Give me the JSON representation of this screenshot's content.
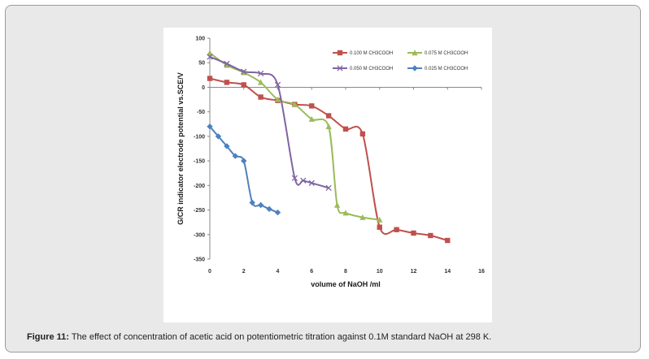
{
  "caption": {
    "label": "Figure 11:",
    "text": " The effect of concentration of acetic acid on potentiometric titration against 0.1M standard NaOH at 298 K."
  },
  "chart_data": {
    "type": "line",
    "title": "",
    "xlabel": "volume of NaOH /ml",
    "ylabel": "G/CR indicator electrode potential vs.SCE/V",
    "xlim": [
      0,
      16
    ],
    "ylim": [
      -350,
      100
    ],
    "xticks": [
      0,
      2,
      4,
      6,
      8,
      10,
      12,
      14,
      16
    ],
    "yticks": [
      100,
      50,
      0,
      -50,
      -100,
      -150,
      -200,
      -250,
      -300,
      -350
    ],
    "grid": false,
    "legend_position": "top-right",
    "series": [
      {
        "name": "0.100 M CH3COOH",
        "color": "#c0504d",
        "marker": "square",
        "x": [
          0,
          1,
          2,
          3,
          4,
          5,
          6,
          7,
          8,
          9,
          10,
          11,
          12,
          13,
          14
        ],
        "y": [
          18,
          10,
          5,
          -20,
          -27,
          -35,
          -38,
          -58,
          -85,
          -95,
          -285,
          -290,
          -297,
          -302,
          -312
        ]
      },
      {
        "name": "0.075 M CH3COOH",
        "color": "#9bbb59",
        "marker": "triangle",
        "x": [
          0,
          1,
          2,
          3,
          4,
          5,
          6,
          7,
          7.5,
          8,
          9,
          10
        ],
        "y": [
          70,
          45,
          30,
          10,
          -25,
          -35,
          -65,
          -80,
          -240,
          -256,
          -265,
          -270
        ]
      },
      {
        "name": "0.050 M CH3COOH",
        "color": "#8064a2",
        "marker": "x",
        "x": [
          0,
          1,
          2,
          3,
          4,
          5,
          5.5,
          6,
          7
        ],
        "y": [
          62,
          48,
          32,
          28,
          5,
          -185,
          -190,
          -195,
          -205
        ]
      },
      {
        "name": "0.025 M CH3COOH",
        "color": "#4f81bd",
        "marker": "diamond",
        "x": [
          0,
          0.5,
          1,
          1.5,
          2,
          2.5,
          3,
          3.5,
          4
        ],
        "y": [
          -80,
          -100,
          -120,
          -140,
          -150,
          -235,
          -240,
          -248,
          -255
        ]
      }
    ]
  }
}
